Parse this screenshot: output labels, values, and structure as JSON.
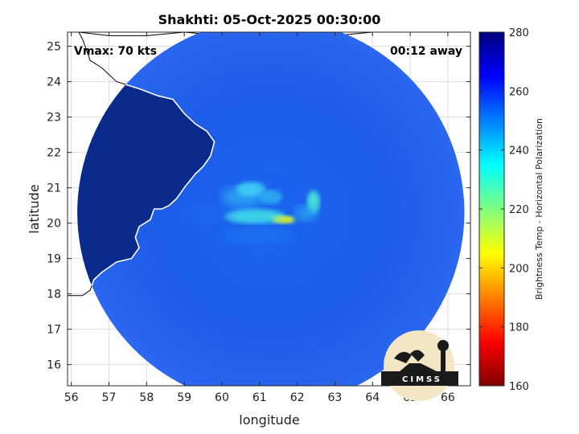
{
  "chart_data": {
    "type": "heatmap",
    "title": "Shakhti: 05-Oct-2025 00:30:00",
    "annotations": {
      "vmax": "Vmax: 70 kts",
      "time_away": "00:12 away"
    },
    "xlabel": "longitude",
    "ylabel": "latitude",
    "xlim": [
      55.9,
      66.6
    ],
    "ylim": [
      15.4,
      25.4
    ],
    "x_ticks": [
      56,
      57,
      58,
      59,
      60,
      61,
      62,
      63,
      64,
      65,
      66
    ],
    "y_ticks": [
      16,
      17,
      18,
      19,
      20,
      21,
      22,
      23,
      24,
      25
    ],
    "grid": true,
    "colorbar": {
      "label": "Brightness Temp - Horizontal Polarization",
      "range": [
        160,
        280
      ],
      "ticks": [
        160,
        180,
        200,
        220,
        240,
        260,
        280
      ],
      "colormap": "jet"
    },
    "swath": {
      "center_lon": 61.3,
      "center_lat": 20.3,
      "radius_deg": 5.3
    },
    "cyclone_center": {
      "lon": 61.3,
      "lat": 20.1
    },
    "logo": "CIMSS",
    "colors": {
      "land": "#0a2a8c",
      "ocean": "#1e5ae6",
      "coast": "#ffffff"
    }
  }
}
